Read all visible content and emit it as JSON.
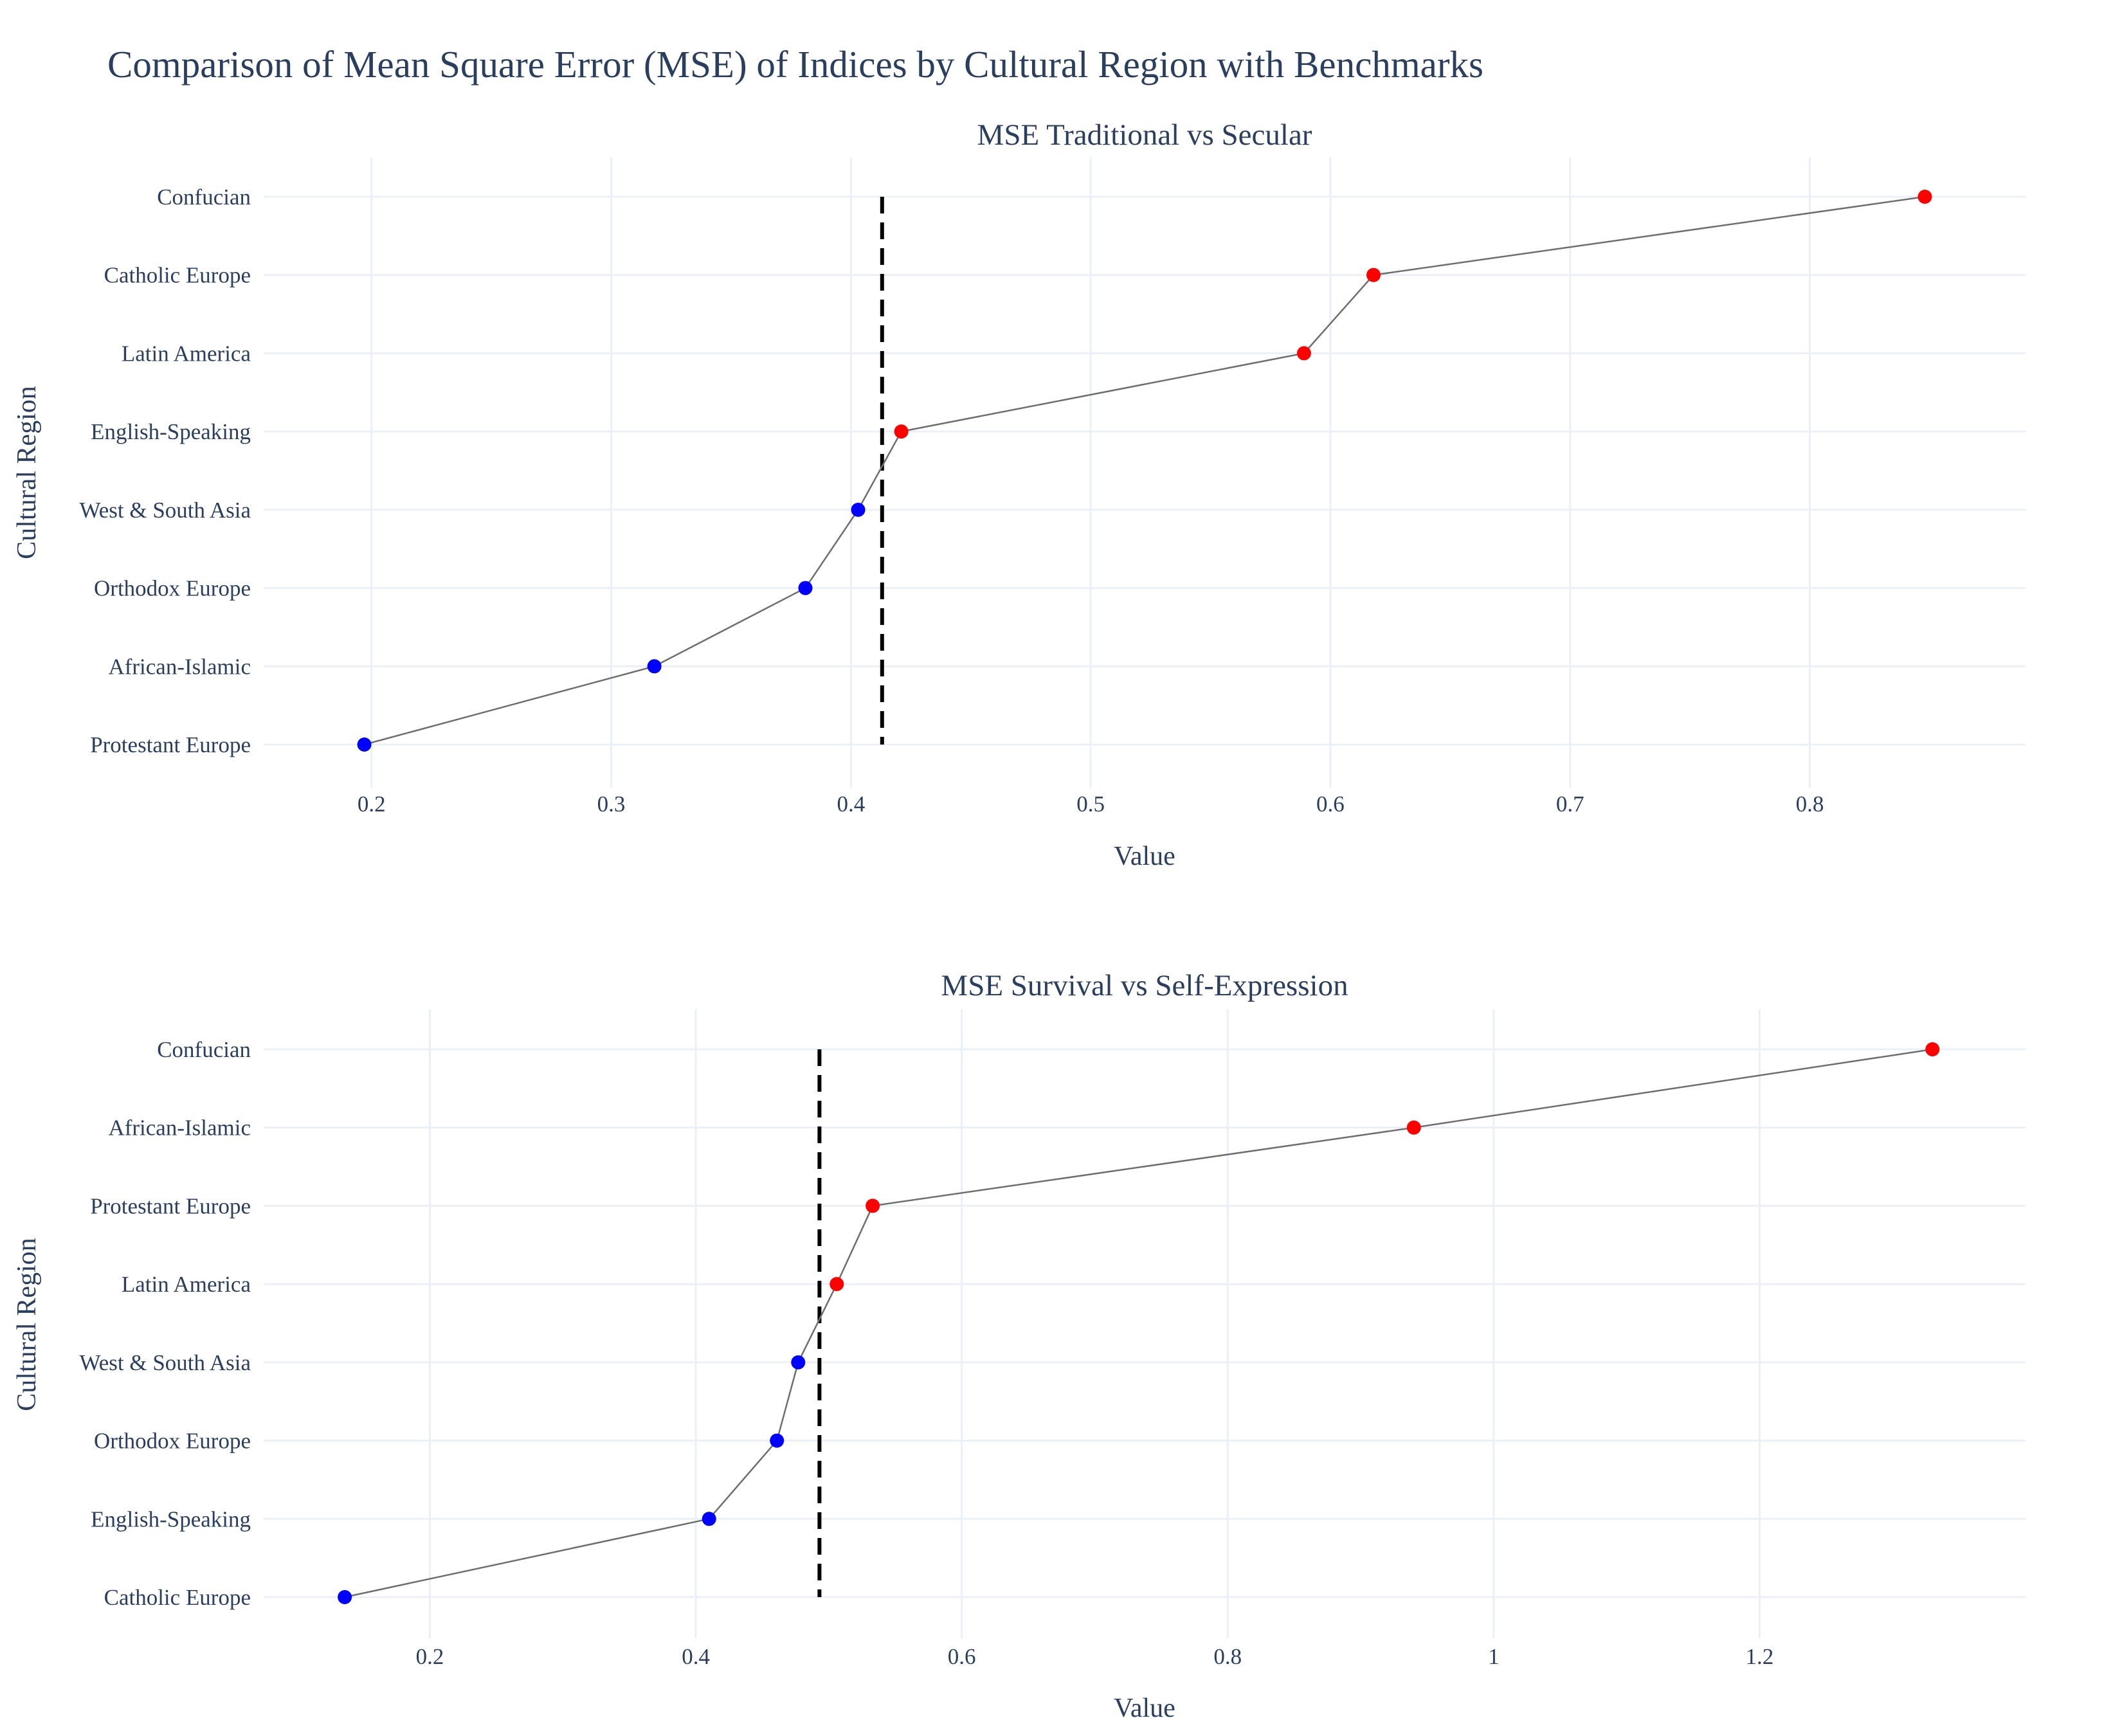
{
  "chart_data": {
    "title": "Comparison of Mean Square Error (MSE) of Indices by Cultural Region with Benchmarks",
    "subplots": [
      {
        "type": "scatter",
        "mode": "lines+markers",
        "title": "MSE Traditional vs Secular",
        "xlabel": "Value",
        "ylabel": "Cultural Region",
        "xlim": [
          0.155,
          0.89
        ],
        "xticks": [
          0.2,
          0.3,
          0.4,
          0.5,
          0.6,
          0.7,
          0.8
        ],
        "xtick_labels": [
          "0.2",
          "0.3",
          "0.4",
          "0.5",
          "0.6",
          "0.7",
          "0.8"
        ],
        "categories": [
          "Protestant Europe",
          "African-Islamic",
          "Orthodox Europe",
          "West & South Asia",
          "English-Speaking",
          "Latin America",
          "Catholic Europe",
          "Confucian"
        ],
        "values": [
          0.197,
          0.318,
          0.381,
          0.403,
          0.421,
          0.589,
          0.618,
          0.848
        ],
        "marker_colors": [
          "#0000ff",
          "#0000ff",
          "#0000ff",
          "#0000ff",
          "#ff0000",
          "#ff0000",
          "#ff0000",
          "#ff0000"
        ],
        "benchmark": 0.413,
        "benchmark_style": "dashed black vertical line",
        "grid": true
      },
      {
        "type": "scatter",
        "mode": "lines+markers",
        "title": "MSE Survival vs Self-Expression",
        "xlabel": "Value",
        "ylabel": "Cultural Region",
        "xlim": [
          0.075,
          1.4
        ],
        "xticks": [
          0.2,
          0.4,
          0.6,
          0.8,
          1.0,
          1.2
        ],
        "xtick_labels": [
          "0.2",
          "0.4",
          "0.6",
          "0.8",
          "1",
          "1.2"
        ],
        "categories": [
          "Catholic Europe",
          "English-Speaking",
          "Orthodox Europe",
          "West & South Asia",
          "Latin America",
          "Protestant Europe",
          "African-Islamic",
          "Confucian"
        ],
        "values": [
          0.136,
          0.41,
          0.461,
          0.477,
          0.506,
          0.533,
          0.94,
          1.33
        ],
        "marker_colors": [
          "#0000ff",
          "#0000ff",
          "#0000ff",
          "#0000ff",
          "#ff0000",
          "#ff0000",
          "#ff0000",
          "#ff0000"
        ],
        "benchmark": 0.493,
        "benchmark_style": "dashed black vertical line",
        "grid": true
      }
    ]
  }
}
